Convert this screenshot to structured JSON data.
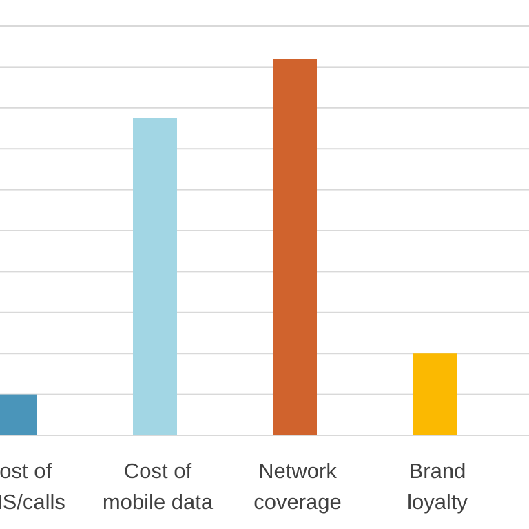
{
  "chart_data": {
    "type": "bar",
    "title": "",
    "xlabel": "",
    "ylabel": "",
    "categories": [
      [
        "Cost of",
        "SMS/calls"
      ],
      [
        "Cost of",
        "mobile data"
      ],
      [
        "Network",
        "coverage"
      ],
      [
        "Brand",
        "loyalty"
      ]
    ],
    "values": [
      1,
      7.75,
      9.2,
      2
    ],
    "ylim": [
      0,
      10
    ],
    "y_tick_step": 1,
    "grid": true,
    "colors": [
      "#4a95ba",
      "#a2d6e4",
      "#d0632d",
      "#fbb901"
    ]
  }
}
